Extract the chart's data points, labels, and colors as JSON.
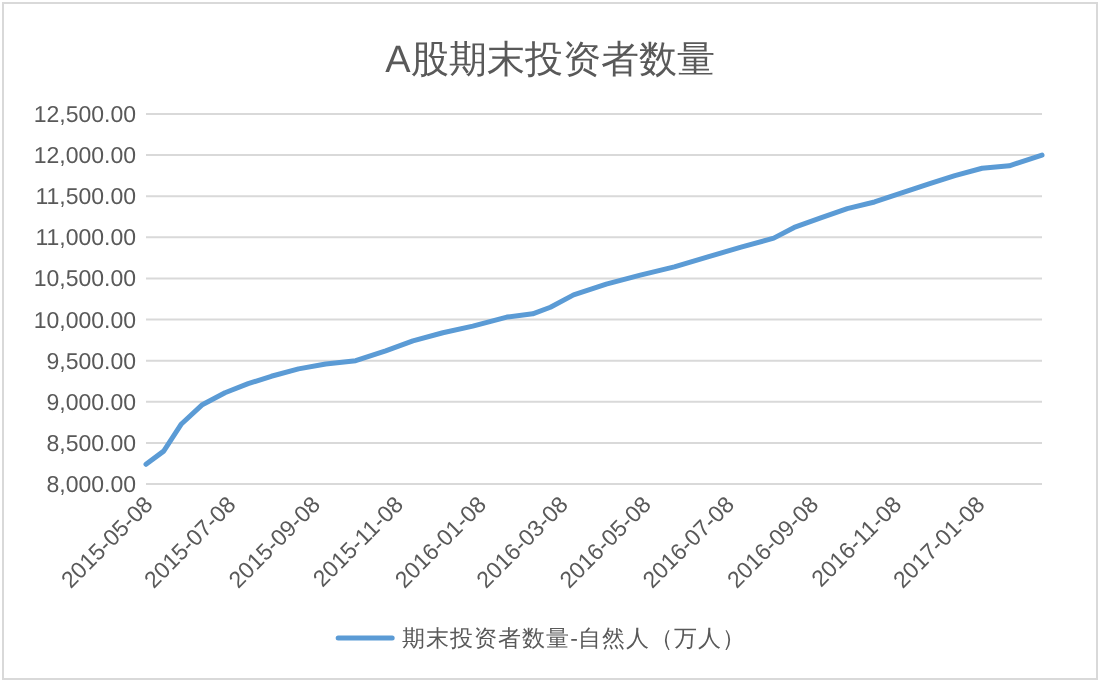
{
  "chart_data": {
    "type": "line",
    "title": "A股期末投资者数量",
    "legend": "bottom",
    "grid": "y",
    "line_style": "solid",
    "marker": "none",
    "xlim": [
      "2015-05-08",
      "2017-02-24"
    ],
    "xticks": [
      {
        "value": "2015-05-08",
        "label": "2015-05-08"
      },
      {
        "value": "2015-07-08",
        "label": "2015-07-08"
      },
      {
        "value": "2015-09-08",
        "label": "2015-09-08"
      },
      {
        "value": "2015-11-08",
        "label": "2015-11-08"
      },
      {
        "value": "2016-01-08",
        "label": "2016-01-08"
      },
      {
        "value": "2016-03-08",
        "label": "2016-03-08"
      },
      {
        "value": "2016-05-08",
        "label": "2016-05-08"
      },
      {
        "value": "2016-07-08",
        "label": "2016-07-08"
      },
      {
        "value": "2016-09-08",
        "label": "2016-09-08"
      },
      {
        "value": "2016-11-08",
        "label": "2016-11-08"
      },
      {
        "value": "2017-01-08",
        "label": "2017-01-08"
      }
    ],
    "ylim": [
      8000,
      12500
    ],
    "yticks": [
      {
        "value": 8000,
        "label": "8,000.00"
      },
      {
        "value": 8500,
        "label": "8,500.00"
      },
      {
        "value": 9000,
        "label": "9,000.00"
      },
      {
        "value": 9500,
        "label": "9,500.00"
      },
      {
        "value": 10000,
        "label": "10,000.00"
      },
      {
        "value": 10500,
        "label": "10,500.00"
      },
      {
        "value": 11000,
        "label": "11,000.00"
      },
      {
        "value": 11500,
        "label": "11,500.00"
      },
      {
        "value": 12000,
        "label": "12,000.00"
      },
      {
        "value": 12500,
        "label": "12,500.00"
      }
    ],
    "x": [
      "2015-05-08",
      "2015-05-21",
      "2015-06-03",
      "2015-06-18",
      "2015-07-05",
      "2015-07-22",
      "2015-08-08",
      "2015-08-28",
      "2015-09-17",
      "2015-10-09",
      "2015-10-31",
      "2015-11-20",
      "2015-12-12",
      "2016-01-03",
      "2016-01-28",
      "2016-02-16",
      "2016-02-29",
      "2016-03-17",
      "2016-04-10",
      "2016-05-05",
      "2016-05-30",
      "2016-06-23",
      "2016-07-18",
      "2016-08-11",
      "2016-08-26",
      "2016-09-15",
      "2016-10-04",
      "2016-10-24",
      "2016-11-13",
      "2016-12-03",
      "2016-12-22",
      "2017-01-11",
      "2017-01-31",
      "2017-02-24"
    ],
    "series": [
      {
        "name": "期末投资者数量-自然人（万人）",
        "color": "#5b9bd5",
        "values": [
          8240,
          8400,
          8730,
          8960,
          9110,
          9220,
          9310,
          9400,
          9460,
          9500,
          9620,
          9740,
          9840,
          9920,
          10030,
          10070,
          10150,
          10300,
          10430,
          10540,
          10640,
          10760,
          10880,
          10990,
          11120,
          11240,
          11350,
          11430,
          11540,
          11650,
          11750,
          11840,
          11870,
          12000
        ]
      }
    ]
  }
}
